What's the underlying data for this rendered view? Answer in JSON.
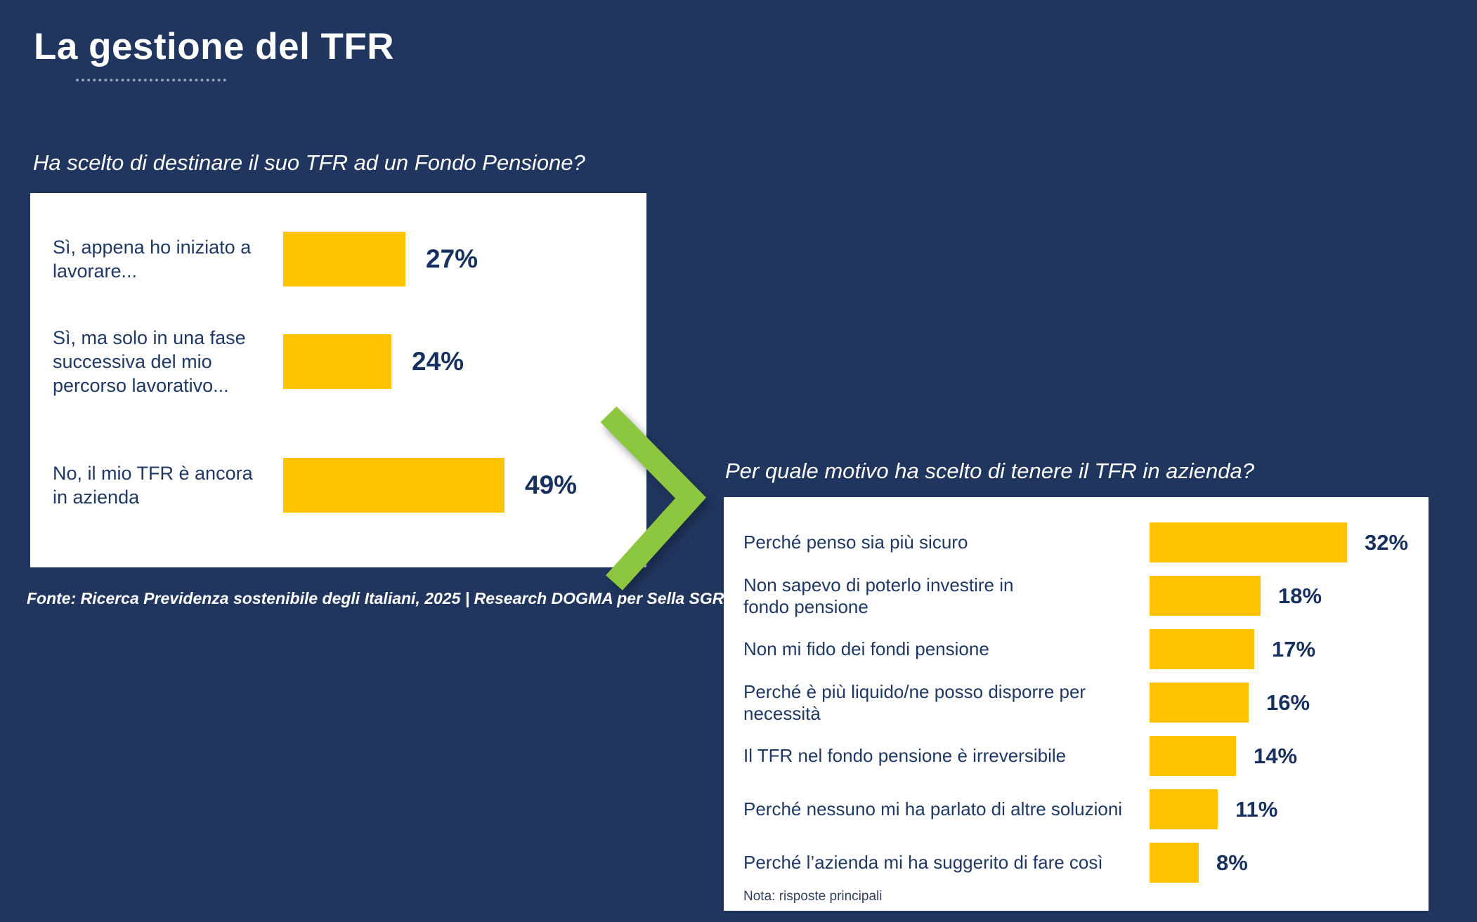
{
  "slide": {
    "title": "La gestione del TFR",
    "source": "Fonte: Ricerca Previdenza sostenibile degli Italiani, 2025 | Research DOGMA per Sella SGR",
    "colors": {
      "background": "#21365F",
      "bar": "#FFC200",
      "text_navy": "#1F3864",
      "arrow_green": "#8DC63F",
      "card": "#FFFFFF"
    },
    "arrow_icon": "chevron-right"
  },
  "chart_data": [
    {
      "type": "bar",
      "orientation": "horizontal",
      "title": "Ha scelto di destinare il suo TFR ad un Fondo Pensione?",
      "categories": [
        "Sì, appena ho iniziato a\nlavorare...",
        "Sì, ma solo in una fase\nsuccessiva del mio\npercorso lavorativo...",
        "No, il mio TFR è ancora\nin azienda"
      ],
      "values": [
        27,
        24,
        49
      ],
      "value_suffix": "%",
      "xlim": [
        0,
        49
      ],
      "grid": false,
      "legend": false,
      "bar_color": "#FFC200"
    },
    {
      "type": "bar",
      "orientation": "horizontal",
      "title": "Per quale motivo ha scelto di tenere il TFR in azienda?",
      "categories": [
        "Perché penso sia più sicuro",
        "Non sapevo di poterlo investire in\nfondo pensione",
        "Non mi fido dei fondi pensione",
        "Perché è più liquido/ne posso disporre per\nnecessità",
        "Il TFR nel fondo pensione è irreversibile",
        "Perché nessuno mi ha parlato di altre soluzioni",
        "Perché l’azienda mi ha suggerito di fare così"
      ],
      "values": [
        32,
        18,
        17,
        16,
        14,
        11,
        8
      ],
      "value_suffix": "%",
      "note": "Nota: risposte principali",
      "xlim": [
        0,
        32
      ],
      "grid": false,
      "legend": false,
      "bar_color": "#FFC200"
    }
  ]
}
